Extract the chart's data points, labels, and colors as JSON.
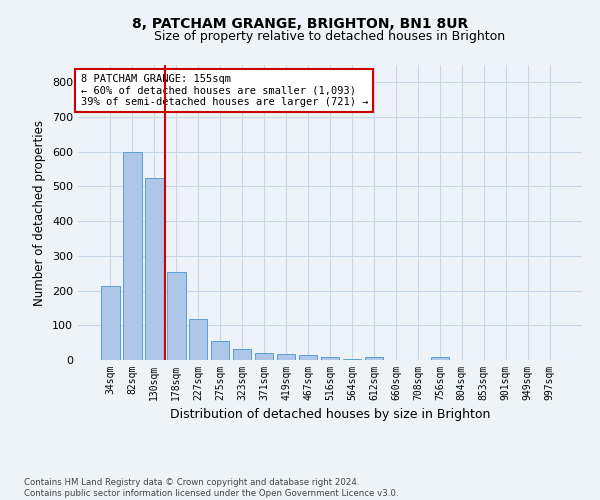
{
  "title_line1": "8, PATCHAM GRANGE, BRIGHTON, BN1 8UR",
  "title_line2": "Size of property relative to detached houses in Brighton",
  "xlabel": "Distribution of detached houses by size in Brighton",
  "ylabel": "Number of detached properties",
  "categories": [
    "34sqm",
    "82sqm",
    "130sqm",
    "178sqm",
    "227sqm",
    "275sqm",
    "323sqm",
    "371sqm",
    "419sqm",
    "467sqm",
    "516sqm",
    "564sqm",
    "612sqm",
    "660sqm",
    "708sqm",
    "756sqm",
    "804sqm",
    "853sqm",
    "901sqm",
    "949sqm",
    "997sqm"
  ],
  "values": [
    213,
    600,
    525,
    255,
    118,
    55,
    33,
    20,
    17,
    15,
    10,
    4,
    10,
    0,
    0,
    10,
    0,
    0,
    0,
    0,
    0
  ],
  "bar_color": "#aec6e8",
  "bar_edge_color": "#5a9fd4",
  "grid_color": "#c8d8e8",
  "background_color": "#eef3fa",
  "property_line_x": 2.5,
  "annotation_text": "8 PATCHAM GRANGE: 155sqm\n← 60% of detached houses are smaller (1,093)\n39% of semi-detached houses are larger (721) →",
  "annotation_box_color": "#ffffff",
  "annotation_box_edge": "#cc0000",
  "red_line_color": "#cc0000",
  "ylim": [
    0,
    850
  ],
  "yticks": [
    0,
    100,
    200,
    300,
    400,
    500,
    600,
    700,
    800
  ],
  "footnote": "Contains HM Land Registry data © Crown copyright and database right 2024.\nContains public sector information licensed under the Open Government Licence v3.0."
}
